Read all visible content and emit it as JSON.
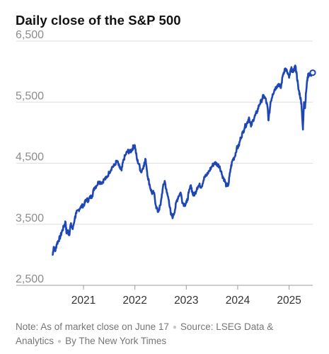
{
  "chart_data": {
    "type": "line",
    "title": "Daily close of the S&P 500",
    "xlabel": "",
    "ylabel": "",
    "ylim": [
      2500,
      6500
    ],
    "xlim": [
      2020.38,
      2025.46
    ],
    "y_ticks": [
      2500,
      3500,
      4500,
      5500,
      6500
    ],
    "y_tick_labels": [
      "2,500",
      "3,500",
      "4,500",
      "5,500",
      "6,500"
    ],
    "x_ticks": [
      2021,
      2022,
      2023,
      2024,
      2025
    ],
    "x_tick_labels": [
      "2021",
      "2022",
      "2023",
      "2024",
      "2025"
    ],
    "grid": "horizontal",
    "series": [
      {
        "color": "#1f47b3",
        "x": [
          2020.4,
          2020.42,
          2020.45,
          2020.48,
          2020.51,
          2020.55,
          2020.58,
          2020.62,
          2020.65,
          2020.67,
          2020.69,
          2020.72,
          2020.75,
          2020.79,
          2020.83,
          2020.86,
          2020.9,
          2020.94,
          2020.98,
          2021.02,
          2021.06,
          2021.09,
          2021.13,
          2021.17,
          2021.21,
          2021.25,
          2021.3,
          2021.35,
          2021.4,
          2021.45,
          2021.5,
          2021.55,
          2021.6,
          2021.65,
          2021.7,
          2021.74,
          2021.78,
          2021.82,
          2021.86,
          2021.9,
          2021.94,
          2021.97,
          2022.0,
          2022.04,
          2022.08,
          2022.12,
          2022.17,
          2022.21,
          2022.25,
          2022.29,
          2022.33,
          2022.37,
          2022.41,
          2022.45,
          2022.5,
          2022.54,
          2022.58,
          2022.62,
          2022.66,
          2022.7,
          2022.74,
          2022.78,
          2022.81,
          2022.85,
          2022.89,
          2022.93,
          2022.97,
          2023.01,
          2023.05,
          2023.09,
          2023.13,
          2023.17,
          2023.21,
          2023.25,
          2023.3,
          2023.35,
          2023.4,
          2023.45,
          2023.5,
          2023.55,
          2023.6,
          2023.65,
          2023.7,
          2023.74,
          2023.78,
          2023.82,
          2023.86,
          2023.9,
          2023.94,
          2023.98,
          2024.02,
          2024.06,
          2024.1,
          2024.14,
          2024.18,
          2024.22,
          2024.26,
          2024.3,
          2024.34,
          2024.38,
          2024.42,
          2024.46,
          2024.5,
          2024.54,
          2024.58,
          2024.6,
          2024.64,
          2024.68,
          2024.72,
          2024.76,
          2024.8,
          2024.84,
          2024.88,
          2024.92,
          2024.96,
          2025.0,
          2025.04,
          2025.08,
          2025.12,
          2025.15,
          2025.18,
          2025.21,
          2025.24,
          2025.27,
          2025.29,
          2025.31,
          2025.33,
          2025.36,
          2025.39,
          2025.42,
          2025.45
        ],
        "y": [
          3000,
          3130,
          3060,
          3180,
          3230,
          3300,
          3380,
          3470,
          3540,
          3350,
          3400,
          3320,
          3500,
          3420,
          3600,
          3680,
          3730,
          3780,
          3800,
          3840,
          3910,
          3890,
          3940,
          3970,
          4100,
          4130,
          4200,
          4180,
          4230,
          4260,
          4350,
          4430,
          4460,
          4540,
          4430,
          4380,
          4560,
          4640,
          4700,
          4680,
          4720,
          4770,
          4790,
          4560,
          4480,
          4350,
          4460,
          4560,
          4280,
          4130,
          4010,
          4020,
          3800,
          3700,
          3820,
          4080,
          4210,
          4020,
          3900,
          3660,
          3620,
          3740,
          3880,
          3960,
          4020,
          3850,
          3820,
          3860,
          4020,
          4140,
          3980,
          4000,
          4100,
          4140,
          4120,
          4280,
          4300,
          4380,
          4450,
          4510,
          4480,
          4450,
          4300,
          4230,
          4130,
          4150,
          4400,
          4550,
          4600,
          4740,
          4780,
          4920,
          5000,
          5100,
          5150,
          5250,
          5100,
          5210,
          5280,
          5350,
          5460,
          5520,
          5600,
          5560,
          5420,
          5200,
          5500,
          5630,
          5710,
          5760,
          5800,
          5730,
          5950,
          6050,
          6000,
          5900,
          6050,
          5990,
          6100,
          5950,
          5720,
          5620,
          5480,
          5050,
          5500,
          5400,
          5660,
          5910,
          5970,
          5940,
          5980
        ]
      }
    ],
    "end_marker": {
      "x": 2025.46,
      "y": 5982
    }
  },
  "footnote": {
    "note": "Note: As of market close on June 17",
    "source": "Source: LSEG Data & Analytics",
    "credit": "By The New York Times"
  }
}
